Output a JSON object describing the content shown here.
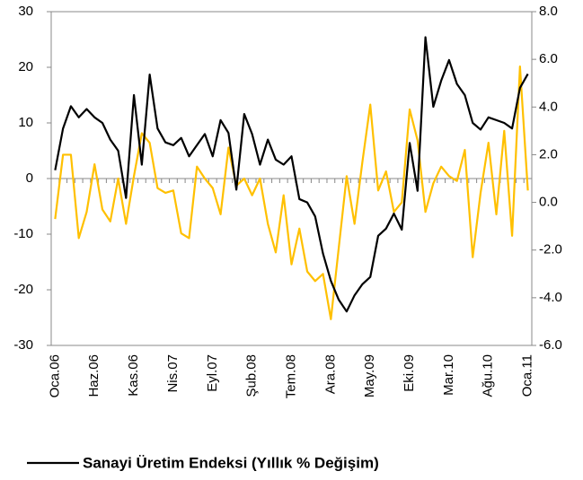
{
  "chart_data": {
    "type": "line",
    "categories": [
      "Oca.06",
      null,
      null,
      null,
      null,
      "Haz.06",
      null,
      null,
      null,
      null,
      "Kas.06",
      null,
      null,
      null,
      null,
      "Nis.07",
      null,
      null,
      null,
      null,
      "Eyl.07",
      null,
      null,
      null,
      null,
      "Şub.08",
      null,
      null,
      null,
      null,
      "Tem.08",
      null,
      null,
      null,
      null,
      "Ara.08",
      null,
      null,
      null,
      null,
      "May.09",
      null,
      null,
      null,
      null,
      "Eki.09",
      null,
      null,
      null,
      null,
      "Mar.10",
      null,
      null,
      null,
      null,
      "Ağu.10",
      null,
      null,
      null,
      null,
      "Oca.11"
    ],
    "series": [
      {
        "name": "Sanayi Üretim Endeksi (Yıllık % Değişim)",
        "color": "#000000",
        "axis": "y",
        "values": [
          1.5,
          9,
          13,
          11,
          12.5,
          11,
          10,
          7,
          5,
          -3.5,
          15,
          2.5,
          18.7,
          9,
          6.5,
          6,
          7.3,
          4,
          6,
          8,
          4,
          10.5,
          8.2,
          -2,
          11.6,
          8,
          2.5,
          7,
          3.4,
          2.5,
          4,
          -3.7,
          -4.3,
          -6.8,
          -13.5,
          -18.4,
          -21.8,
          -23.9,
          -21,
          -19,
          -17.7,
          -10.3,
          -9,
          -6.3,
          -9.2,
          6.4,
          -2.2,
          25.4,
          12.9,
          17.6,
          21.3,
          17,
          15,
          10,
          8.8,
          11,
          10.5,
          10,
          9,
          16.3,
          18.8
        ]
      },
      {
        "color": "#ffc000",
        "axis": "y2",
        "values": [
          -0.7,
          2.0,
          2.0,
          -1.5,
          -0.4,
          1.6,
          -0.3,
          -0.8,
          1.0,
          -0.9,
          1.1,
          2.9,
          2.5,
          0.6,
          0.4,
          0.5,
          -1.3,
          -1.5,
          1.5,
          1.0,
          0.6,
          -0.5,
          2.3,
          0.7,
          1.0,
          0.3,
          1.0,
          -0.9,
          -2.1,
          0.3,
          -2.6,
          -1.1,
          -2.9,
          -3.3,
          -3.0,
          -4.9,
          -1.9,
          1.1,
          -0.9,
          1.7,
          4.1,
          0.5,
          1.3,
          -0.4,
          0.0,
          3.9,
          2.6,
          -0.4,
          0.8,
          1.5,
          1.1,
          0.9,
          2.2,
          -2.3,
          0.4,
          2.5,
          -0.5,
          3.0,
          -1.4,
          5.7,
          0.5
        ]
      }
    ],
    "ylim": [
      -30,
      30
    ],
    "yticks": [
      -30,
      -20,
      -10,
      0,
      10,
      20,
      30
    ],
    "y2lim": [
      -6,
      8
    ],
    "y2ticks": [
      {
        "value": -6,
        "label": "-6.0"
      },
      {
        "value": -4,
        "label": "-4.0"
      },
      {
        "value": -2,
        "label": "-2.0"
      },
      {
        "value": 0,
        "label": "0.0"
      },
      {
        "value": 2,
        "label": "2.0"
      },
      {
        "value": 4,
        "label": "4.0"
      },
      {
        "value": 6,
        "label": "6.0"
      },
      {
        "value": 8,
        "label": "8.0"
      }
    ],
    "legend": "bottom"
  }
}
